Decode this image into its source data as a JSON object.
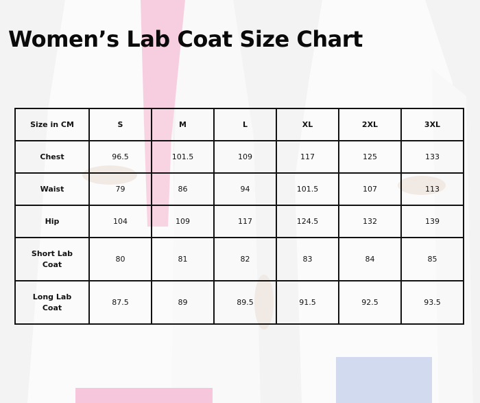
{
  "title": "Women’s Lab Coat Size Chart",
  "table": {
    "headers": [
      "Size in CM",
      "S",
      "M",
      "L",
      "XL",
      "2XL",
      "3XL"
    ],
    "rows": [
      {
        "label": "Chest",
        "values": [
          "96.5",
          "101.5",
          "109",
          "117",
          "125",
          "133"
        ]
      },
      {
        "label": "Waist",
        "values": [
          "79",
          "86",
          "94",
          "101.5",
          "107",
          "113"
        ]
      },
      {
        "label": "Hip",
        "values": [
          "104",
          "109",
          "117",
          "124.5",
          "132",
          "139"
        ]
      },
      {
        "label": "Short Lab\nCoat",
        "values": [
          "80",
          "81",
          "82",
          "83",
          "84",
          "85"
        ]
      },
      {
        "label": "Long Lab\nCoat",
        "values": [
          "87.5",
          "89",
          "89.5",
          "91.5",
          "92.5",
          "93.5"
        ]
      }
    ]
  },
  "colors": {
    "scrub_pink": "#ef8fba",
    "scrub_blue": "#8ea4d6",
    "coat_white": "#f7f7f7",
    "text": "#111111"
  }
}
